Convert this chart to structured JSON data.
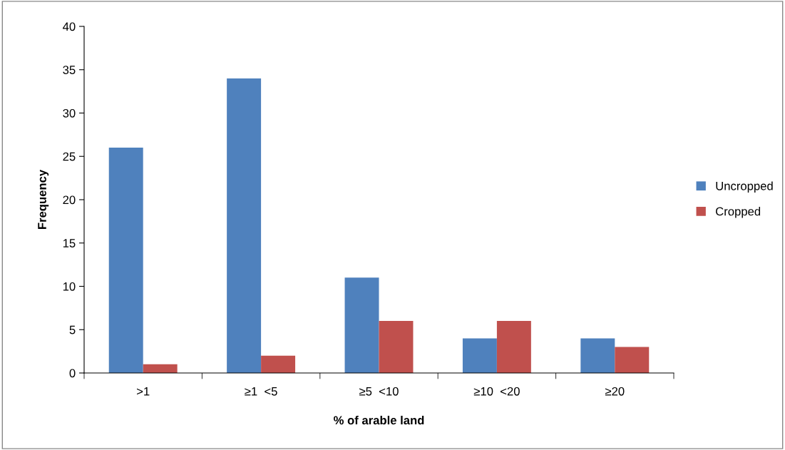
{
  "chart_data": {
    "type": "bar",
    "xlabel": "% of arable land",
    "ylabel": "Frequency",
    "categories": [
      ">1",
      "≥1  <5",
      "≥5  <10",
      "≥10  <20",
      "≥20"
    ],
    "series": [
      {
        "name": "Uncropped",
        "color": "#4f81bd",
        "values": [
          26,
          34,
          11,
          4,
          4
        ]
      },
      {
        "name": "Cropped",
        "color": "#c0504d",
        "values": [
          1,
          2,
          6,
          6,
          3
        ]
      }
    ],
    "ylim": [
      0,
      40
    ],
    "yticks": [
      0,
      5,
      10,
      15,
      20,
      25,
      30,
      35,
      40
    ],
    "grid": false,
    "legend": "right"
  }
}
